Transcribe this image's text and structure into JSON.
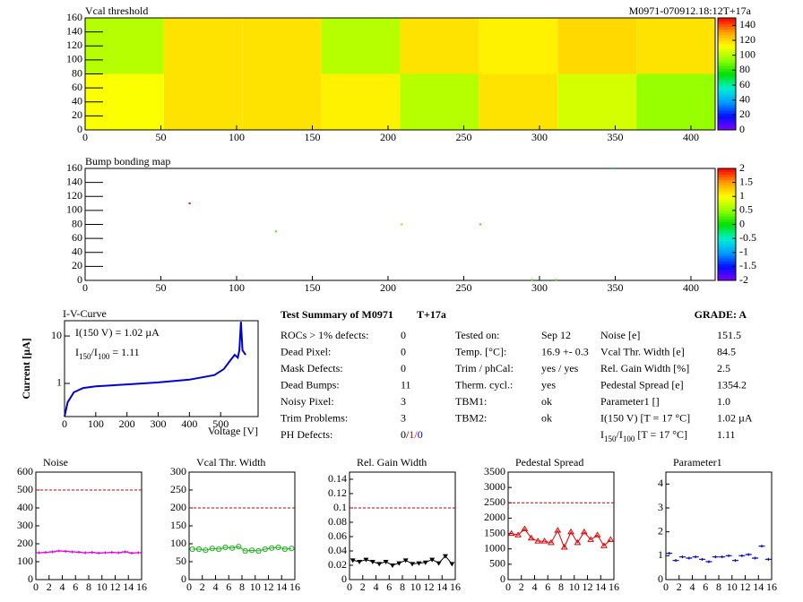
{
  "chart_data": [
    {
      "type": "heatmap",
      "title": "Vcal threshold",
      "subtitle": "M0971-070912.18:12T+17a",
      "xbins": [
        0,
        52,
        104,
        156,
        208,
        260,
        312,
        364,
        416
      ],
      "ybins": [
        0,
        80,
        160
      ],
      "values": [
        [
          112,
          118,
          118,
          115,
          100,
          118,
          105,
          95
        ],
        [
          100,
          118,
          118,
          100,
          118,
          115,
          120,
          118
        ]
      ],
      "xlim": [
        0,
        416
      ],
      "ylim": [
        0,
        160
      ],
      "xticks": [
        0,
        50,
        100,
        150,
        200,
        250,
        300,
        350,
        400
      ],
      "yticks": [
        0,
        20,
        40,
        60,
        80,
        100,
        120,
        140,
        160
      ],
      "zlim": [
        0,
        150
      ],
      "zticks": [
        0,
        20,
        40,
        60,
        80,
        100,
        120,
        140
      ],
      "colormap": [
        "#8000ff",
        "#0010ff",
        "#00a0ff",
        "#00f0d0",
        "#00e000",
        "#90ff00",
        "#ffff00",
        "#ffa000",
        "#ff0000"
      ]
    },
    {
      "type": "scatter",
      "title": "Bump bonding map",
      "x": [
        69,
        126,
        209,
        261,
        349,
        295,
        311
      ],
      "y": [
        110,
        70,
        80,
        80,
        160,
        1,
        1
      ],
      "values": [
        2,
        0.2,
        0.4,
        0.2,
        -0.8,
        0.3,
        0.3
      ],
      "xlim": [
        0,
        416
      ],
      "ylim": [
        0,
        160
      ],
      "xticks": [
        0,
        50,
        100,
        150,
        200,
        250,
        300,
        350,
        400
      ],
      "yticks": [
        0,
        20,
        40,
        60,
        80,
        100,
        120,
        140,
        160
      ],
      "zlim": [
        -2,
        2
      ],
      "zticks": [
        -2,
        -1.5,
        -1,
        -0.5,
        0,
        0.5,
        1,
        1.5,
        2
      ],
      "colormap": [
        "#8000ff",
        "#0010ff",
        "#00a0ff",
        "#00f0d0",
        "#00e000",
        "#90ff00",
        "#ffff00",
        "#ffa000",
        "#ff0000"
      ]
    },
    {
      "type": "line",
      "title": "I-V-Curve",
      "x_label": "Voltage [V]",
      "y_label": "Current [µA]",
      "log_y": true,
      "color": "#0000d0",
      "x": [
        0,
        10,
        30,
        60,
        100,
        200,
        300,
        400,
        480,
        510,
        530,
        545,
        555,
        560,
        565,
        570,
        580
      ],
      "values": [
        0.2,
        0.4,
        0.65,
        0.8,
        0.87,
        0.95,
        1.05,
        1.2,
        1.5,
        2.0,
        3,
        4,
        3.5,
        5,
        20,
        5,
        4
      ],
      "xlim": [
        0,
        620
      ],
      "ylim": [
        0.2,
        21
      ],
      "xticks": [
        0,
        100,
        200,
        300,
        400,
        500
      ],
      "yticks": [
        1,
        10
      ],
      "annotations": [
        [
          {
            "text": "I(150 V) = 1.02 µA"
          }
        ],
        [
          {
            "text": "I"
          },
          {
            "text": "150",
            "sub": true
          },
          {
            "text": "/I"
          },
          {
            "text": "100",
            "sub": true
          },
          {
            "text": " =  1.11"
          }
        ]
      ]
    },
    {
      "type": "line",
      "title": "Noise",
      "marker": "dash",
      "connect": true,
      "color": "#e000e0",
      "x": [
        0.5,
        1.5,
        2.5,
        3.5,
        4.5,
        5.5,
        6.5,
        7.5,
        8.5,
        9.5,
        10.5,
        11.5,
        12.5,
        13.5,
        14.5,
        15.5
      ],
      "values": [
        150,
        152,
        155,
        160,
        158,
        155,
        153,
        150,
        152,
        148,
        150,
        152,
        150,
        155,
        148,
        150
      ],
      "threshold": 500,
      "threshold_color": "#c00000",
      "xlim": [
        0,
        16
      ],
      "ylim": [
        0,
        600
      ],
      "xticks": [
        0,
        2,
        4,
        6,
        8,
        10,
        12,
        14,
        16
      ],
      "yticks": [
        0,
        100,
        200,
        300,
        400,
        500,
        600
      ]
    },
    {
      "type": "line",
      "title": "Vcal Thr. Width",
      "marker": "circle",
      "connect": true,
      "color": "#20b020",
      "x": [
        0.5,
        1.5,
        2.5,
        3.5,
        4.5,
        5.5,
        6.5,
        7.5,
        8.5,
        9.5,
        10.5,
        11.5,
        12.5,
        13.5,
        14.5,
        15.5
      ],
      "values": [
        85,
        85,
        82,
        87,
        85,
        90,
        88,
        92,
        80,
        82,
        80,
        85,
        88,
        90,
        85,
        87
      ],
      "threshold": 200,
      "threshold_color": "#c00000",
      "xlim": [
        0,
        16
      ],
      "ylim": [
        0,
        300
      ],
      "xticks": [
        0,
        2,
        4,
        6,
        8,
        10,
        12,
        14,
        16
      ],
      "yticks": [
        0,
        50,
        100,
        150,
        200,
        250,
        300
      ]
    },
    {
      "type": "line",
      "title": "Rel. Gain Width",
      "marker": "triangle",
      "connect": true,
      "color": "#000000",
      "x": [
        0.5,
        1.5,
        2.5,
        3.5,
        4.5,
        5.5,
        6.5,
        7.5,
        8.5,
        9.5,
        10.5,
        11.5,
        12.5,
        13.5,
        14.5,
        15.5
      ],
      "values": [
        0.027,
        0.025,
        0.028,
        0.025,
        0.022,
        0.025,
        0.02,
        0.023,
        0.027,
        0.022,
        0.023,
        0.024,
        0.028,
        0.023,
        0.033,
        0.022
      ],
      "threshold": 0.1,
      "threshold_color": "#c00000",
      "xlim": [
        0,
        16
      ],
      "ylim": [
        0,
        0.15
      ],
      "xticks": [
        0,
        2,
        4,
        6,
        8,
        10,
        12,
        14,
        16
      ],
      "yticks": [
        0,
        0.02,
        0.04,
        0.06,
        0.08,
        0.1,
        0.12,
        0.14
      ]
    },
    {
      "type": "line",
      "title": "Pedestal Spread",
      "marker": "triangle-up",
      "connect": true,
      "color": "#e00000",
      "x": [
        0.5,
        1.5,
        2.5,
        3.5,
        4.5,
        5.5,
        6.5,
        7.5,
        8.5,
        9.5,
        10.5,
        11.5,
        12.5,
        13.5,
        14.5,
        15.5
      ],
      "values": [
        1500,
        1450,
        1650,
        1350,
        1250,
        1250,
        1200,
        1600,
        1050,
        1550,
        1200,
        1550,
        1300,
        1450,
        1100,
        1300
      ],
      "threshold": 2500,
      "threshold_color": "#c00000",
      "xlim": [
        0,
        16
      ],
      "ylim": [
        0,
        3500
      ],
      "xticks": [
        0,
        2,
        4,
        6,
        8,
        10,
        12,
        14,
        16
      ],
      "yticks": [
        0,
        500,
        1000,
        1500,
        2000,
        2500,
        3000,
        3500
      ]
    },
    {
      "type": "line",
      "title": "Parameter1",
      "marker": "dash",
      "connect": false,
      "color": "#0000c0",
      "x": [
        0.5,
        1.5,
        2.5,
        3.5,
        4.5,
        5.5,
        6.5,
        7.5,
        8.5,
        9.5,
        10.5,
        11.5,
        12.5,
        13.5,
        14.5,
        15.5
      ],
      "values": [
        1.1,
        0.8,
        0.95,
        0.9,
        0.95,
        0.85,
        0.75,
        0.95,
        0.95,
        1.0,
        0.8,
        1.0,
        1.05,
        0.9,
        1.4,
        0.85
      ],
      "xlim": [
        0,
        16
      ],
      "ylim": [
        0,
        4.5
      ],
      "xticks": [
        0,
        2,
        4,
        6,
        8,
        10,
        12,
        14,
        16
      ],
      "yticks": [
        0,
        1,
        2,
        3,
        4
      ]
    }
  ],
  "summary": {
    "title": "Test Summary of M0971",
    "subtitle": "T+17a",
    "grade": "GRADE:  A",
    "columns": [
      [
        {
          "label": "ROCs > 1% defects:",
          "value": "0"
        },
        {
          "label": "Dead Pixel:",
          "value": "0"
        },
        {
          "label": "Mask Defects:",
          "value": "0"
        },
        {
          "label": "Dead Bumps:",
          "value": "11"
        },
        {
          "label": "Noisy Pixel:",
          "value": "3"
        },
        {
          "label": "Trim Problems:",
          "value": "3"
        },
        {
          "label": "PH Defects:",
          "value": [
            {
              "text": "0/",
              "color": "#000000"
            },
            {
              "text": "1/",
              "color": "#e00000"
            },
            {
              "text": "0",
              "color": "#0000e0"
            }
          ]
        }
      ],
      [
        {
          "label": "Tested on:",
          "value": "Sep 12"
        },
        {
          "label": "Temp. [°C]:",
          "value": "16.9 +- 0.3"
        },
        {
          "label": "Trim / phCal:",
          "value": "yes / yes"
        },
        {
          "label": "Therm. cycl.:",
          "value": "yes"
        },
        {
          "label": "TBM1:",
          "value": "ok"
        },
        {
          "label": "TBM2:",
          "value": "ok"
        }
      ],
      [
        {
          "label": "Noise [e]",
          "value": "151.5"
        },
        {
          "label": "Vcal Thr. Width [e]",
          "value": "84.5"
        },
        {
          "label": "Rel. Gain Width [%]",
          "value": "2.5"
        },
        {
          "label": "Pedestal Spread [e]",
          "value": "1354.2"
        },
        {
          "label": "Parameter1 []",
          "value": "1.0"
        },
        {
          "label": "I(150 V) [T = 17 °C]",
          "value": "1.02 µA"
        },
        {
          "label": [
            {
              "text": "I"
            },
            {
              "text": "150",
              "sub": true
            },
            {
              "text": "/I"
            },
            {
              "text": "100",
              "sub": true
            },
            {
              "text": " [T = 17 °C]"
            }
          ],
          "value": "1.11"
        }
      ]
    ]
  }
}
